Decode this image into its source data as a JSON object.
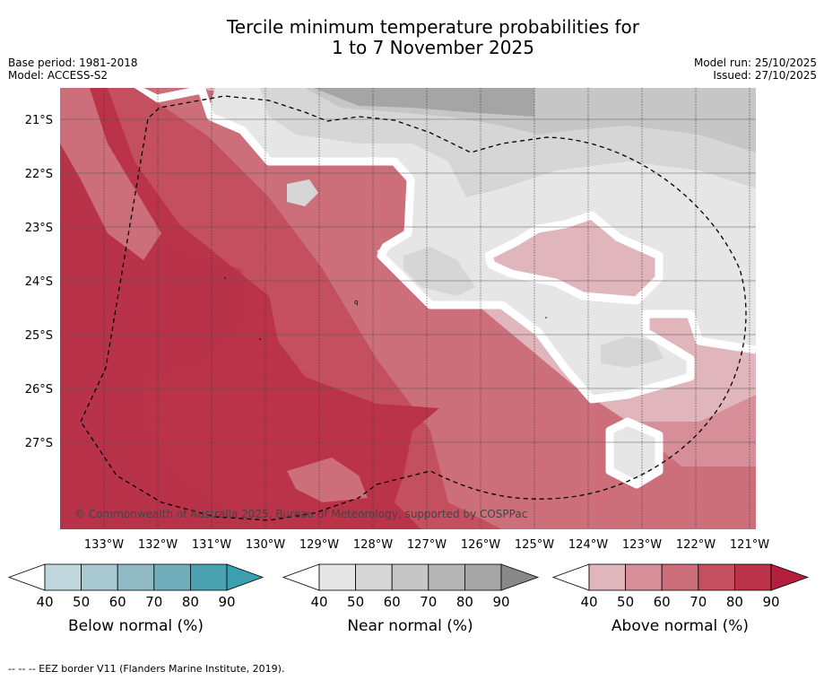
{
  "header": {
    "title_line1": "Tercile minimum temperature probabilities for",
    "title_line2": "1 to 7 November 2025",
    "base_period": "Base period: 1981-2018",
    "model": "Model: ACCESS-S2",
    "model_run": "Model run: 25/10/2025",
    "issued": "Issued: 27/10/2025"
  },
  "map": {
    "lat_labels": [
      "21°S",
      "22°S",
      "23°S",
      "24°S",
      "25°S",
      "26°S",
      "27°S"
    ],
    "lon_labels": [
      "133°W",
      "132°W",
      "131°W",
      "130°W",
      "129°W",
      "128°W",
      "127°W",
      "126°W",
      "125°W",
      "124°W",
      "123°W",
      "122°W",
      "121°W"
    ],
    "copyright": "© Commonwealth of Australia 2025, Bureau of Meteorology, supported by COSPPac"
  },
  "colorbars": [
    {
      "label": "Below normal (%)",
      "ticks": [
        "40",
        "50",
        "60",
        "70",
        "80",
        "90"
      ],
      "colors": [
        "#bed6dc",
        "#a9c9d0",
        "#8fbac4",
        "#72adbb",
        "#4aa2b0"
      ],
      "arrow_color": "#3aa0b0"
    },
    {
      "label": "Near normal (%)",
      "ticks": [
        "40",
        "50",
        "60",
        "70",
        "80",
        "90"
      ],
      "colors": [
        "#e6e6e6",
        "#d6d6d6",
        "#c6c6c6",
        "#b5b5b5",
        "#a5a5a5"
      ],
      "arrow_color": "#888888"
    },
    {
      "label": "Above normal (%)",
      "ticks": [
        "40",
        "50",
        "60",
        "70",
        "80",
        "90"
      ],
      "colors": [
        "#e0b5bb",
        "#d68f98",
        "#cc6f7a",
        "#c4505f",
        "#ba3349"
      ],
      "arrow_color": "#b31f3c"
    }
  ],
  "footnote": "--  --  -- EEZ border V11 (Flanders Marine Institute, 2019)."
}
